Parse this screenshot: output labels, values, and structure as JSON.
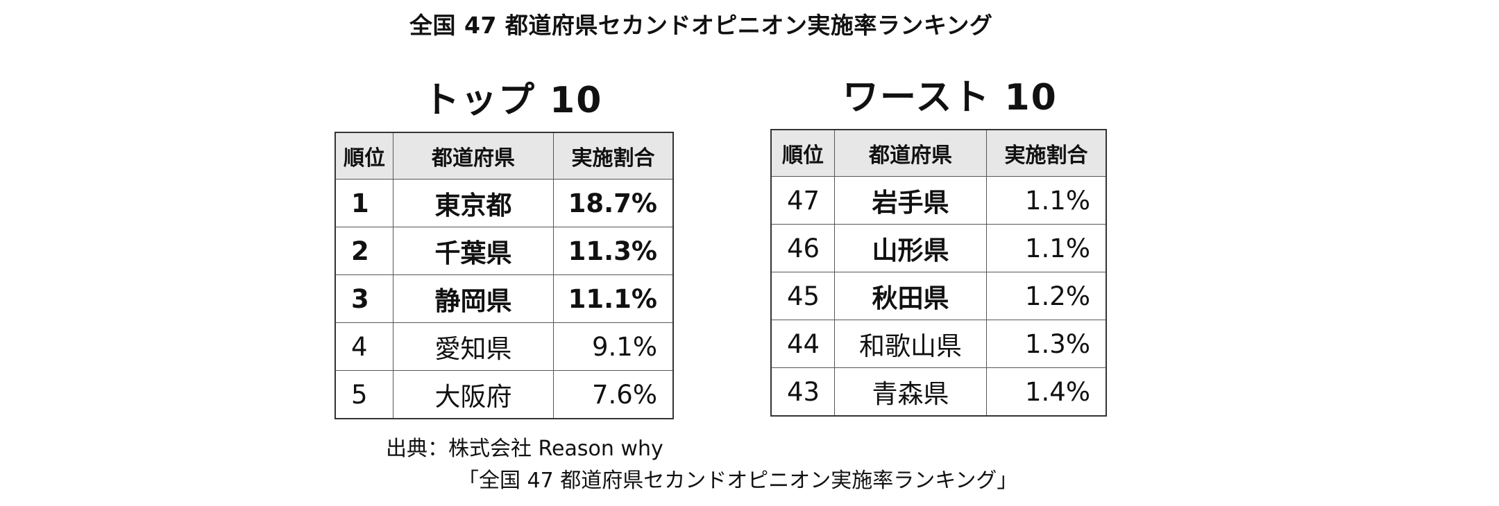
{
  "title": "全国 47 都道府県セカンドオピニオン実施率ランキング",
  "top": {
    "heading": "トップ 10",
    "headers": {
      "rank": "順位",
      "prefecture": "都道府県",
      "rate": "実施割合"
    },
    "rows": [
      {
        "rank": "1",
        "prefecture": "東京都",
        "rate": "18.7%"
      },
      {
        "rank": "2",
        "prefecture": "千葉県",
        "rate": "11.3%"
      },
      {
        "rank": "3",
        "prefecture": "静岡県",
        "rate": "11.1%"
      },
      {
        "rank": "4",
        "prefecture": "愛知県",
        "rate": "9.1%"
      },
      {
        "rank": "5",
        "prefecture": "大阪府",
        "rate": "7.6%"
      }
    ]
  },
  "worst": {
    "heading": "ワースト 10",
    "headers": {
      "rank": "順位",
      "prefecture": "都道府県",
      "rate": "実施割合"
    },
    "rows": [
      {
        "rank": "47",
        "prefecture": "岩手県",
        "rate": "1.1%"
      },
      {
        "rank": "46",
        "prefecture": "山形県",
        "rate": "1.1%"
      },
      {
        "rank": "45",
        "prefecture": "秋田県",
        "rate": "1.2%"
      },
      {
        "rank": "44",
        "prefecture": "和歌山県",
        "rate": "1.3%"
      },
      {
        "rank": "43",
        "prefecture": "青森県",
        "rate": "1.4%"
      }
    ]
  },
  "source": {
    "line1": "出典：株式会社 Reason why",
    "line2": "「全国 47 都道府県セカンドオピニオン実施率ランキング」"
  }
}
